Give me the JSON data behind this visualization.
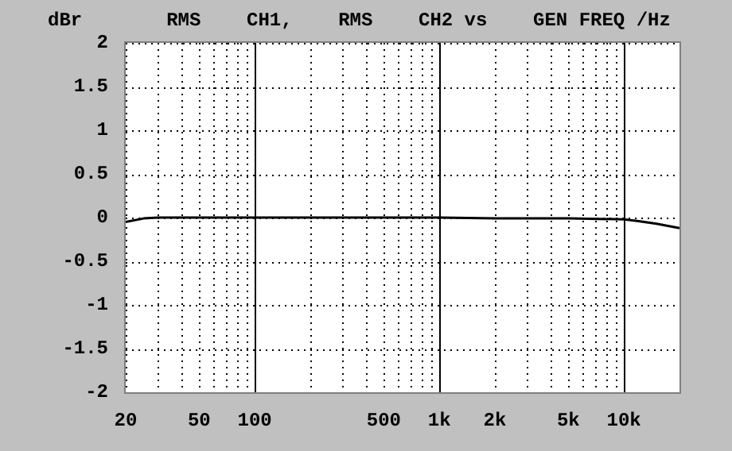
{
  "chart_data": {
    "type": "line",
    "title": "RMS    CH1,    RMS    CH2 vs    GEN FREQ /Hz",
    "ylabel": "dBr",
    "x": [
      20,
      25,
      30,
      50,
      100,
      200,
      500,
      1000,
      2000,
      5000,
      10000,
      12000,
      15000,
      20000
    ],
    "series": [
      {
        "color": "#000000",
        "values": [
          -0.05,
          -0.01,
          0,
          0,
          0,
          0,
          0,
          0,
          -0.01,
          -0.01,
          -0.02,
          -0.04,
          -0.07,
          -0.12
        ]
      }
    ],
    "log": "x",
    "xlim": [
      20,
      20000
    ],
    "xticks": [
      20,
      {
        "value": 30,
        "label": null
      },
      {
        "value": 40,
        "label": null
      },
      50,
      {
        "value": 60,
        "label": null
      },
      {
        "value": 70,
        "label": null
      },
      {
        "value": 80,
        "label": null
      },
      {
        "value": 90,
        "label": null
      },
      100,
      {
        "value": 200,
        "label": null
      },
      {
        "value": 300,
        "label": null
      },
      {
        "value": 400,
        "label": null
      },
      500,
      {
        "value": 600,
        "label": null
      },
      {
        "value": 700,
        "label": null
      },
      {
        "value": 800,
        "label": null
      },
      {
        "value": 900,
        "label": null
      },
      {
        "value": 1000,
        "label": "1k"
      },
      {
        "value": 2000,
        "label": "2k"
      },
      {
        "value": 3000,
        "label": null
      },
      {
        "value": 4000,
        "label": null
      },
      {
        "value": 5000,
        "label": "5k"
      },
      {
        "value": 6000,
        "label": null
      },
      {
        "value": 7000,
        "label": null
      },
      {
        "value": 8000,
        "label": null
      },
      {
        "value": 9000,
        "label": null
      },
      {
        "value": 10000,
        "label": "10k"
      },
      {
        "value": 20000,
        "label": null
      }
    ],
    "ylim": [
      -2,
      2
    ],
    "yticks": [
      -2,
      -1.5,
      -1,
      -0.5,
      0,
      0.5,
      1,
      1.5,
      2
    ],
    "grid": true,
    "marker": "none",
    "line_style": "solid",
    "legend": false
  }
}
